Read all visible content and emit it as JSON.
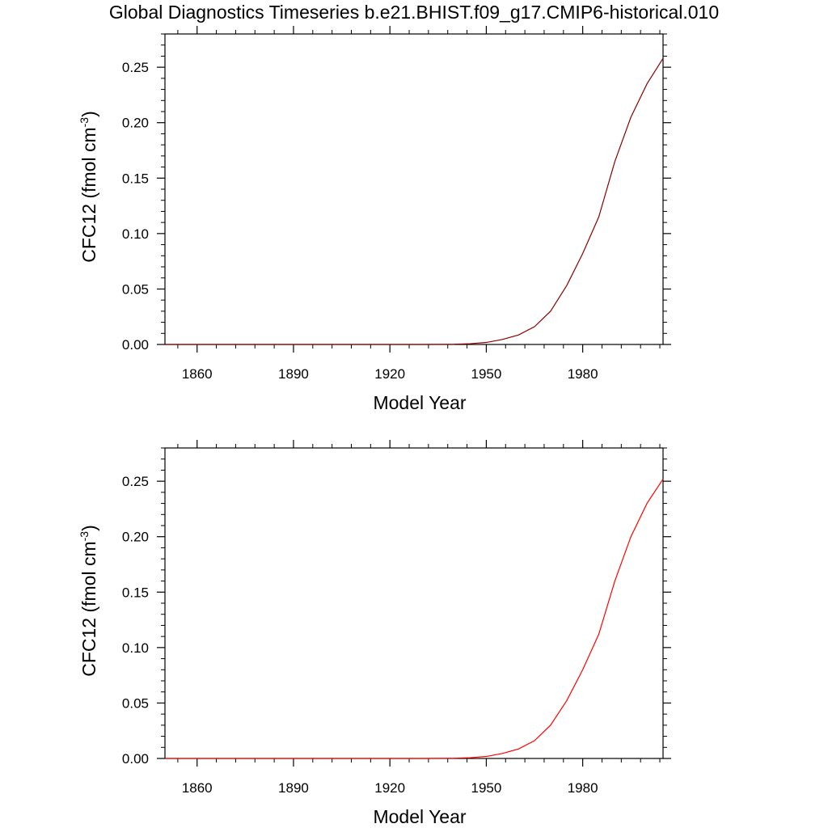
{
  "page": {
    "title": "Global Diagnostics Timeseries b.e21.BHIST.f09_g17.CMIP6-historical.010"
  },
  "chart_data": [
    {
      "type": "line",
      "xlabel": "Model Year",
      "ylabel": "CFC12 (fmol cm",
      "ylabel_superscript": "-3",
      "ylabel_close": ")",
      "xlim": [
        1850,
        2005
      ],
      "ylim": [
        0,
        0.28
      ],
      "x_ticks": [
        1860,
        1890,
        1920,
        1950,
        1980
      ],
      "y_ticks": [
        "0.00",
        "0.05",
        "0.10",
        "0.15",
        "0.20",
        "0.25"
      ],
      "grid": false,
      "series": [
        {
          "color": "#8b0000",
          "x": [
            1850,
            1900,
            1930,
            1940,
            1945,
            1950,
            1955,
            1960,
            1965,
            1970,
            1975,
            1980,
            1985,
            1990,
            1995,
            2000,
            2005
          ],
          "y": [
            0,
            0,
            0,
            0.0002,
            0.0007,
            0.0018,
            0.0045,
            0.0085,
            0.016,
            0.03,
            0.053,
            0.082,
            0.115,
            0.165,
            0.205,
            0.235,
            0.258
          ]
        }
      ]
    },
    {
      "type": "line",
      "xlabel": "Model Year",
      "ylabel": "CFC12 (fmol cm",
      "ylabel_superscript": "-3",
      "ylabel_close": ")",
      "xlim": [
        1850,
        2005
      ],
      "ylim": [
        0,
        0.28
      ],
      "x_ticks": [
        1860,
        1890,
        1920,
        1950,
        1980
      ],
      "y_ticks": [
        "0.00",
        "0.05",
        "0.10",
        "0.15",
        "0.20",
        "0.25"
      ],
      "grid": false,
      "series": [
        {
          "color": "#ff0000",
          "x": [
            1850,
            1900,
            1930,
            1940,
            1945,
            1950,
            1955,
            1960,
            1965,
            1970,
            1975,
            1980,
            1985,
            1990,
            1995,
            2000,
            2005
          ],
          "y": [
            0,
            0,
            0,
            0.0002,
            0.0007,
            0.0018,
            0.0045,
            0.0085,
            0.016,
            0.03,
            0.052,
            0.08,
            0.112,
            0.16,
            0.2,
            0.23,
            0.252
          ]
        }
      ]
    }
  ]
}
